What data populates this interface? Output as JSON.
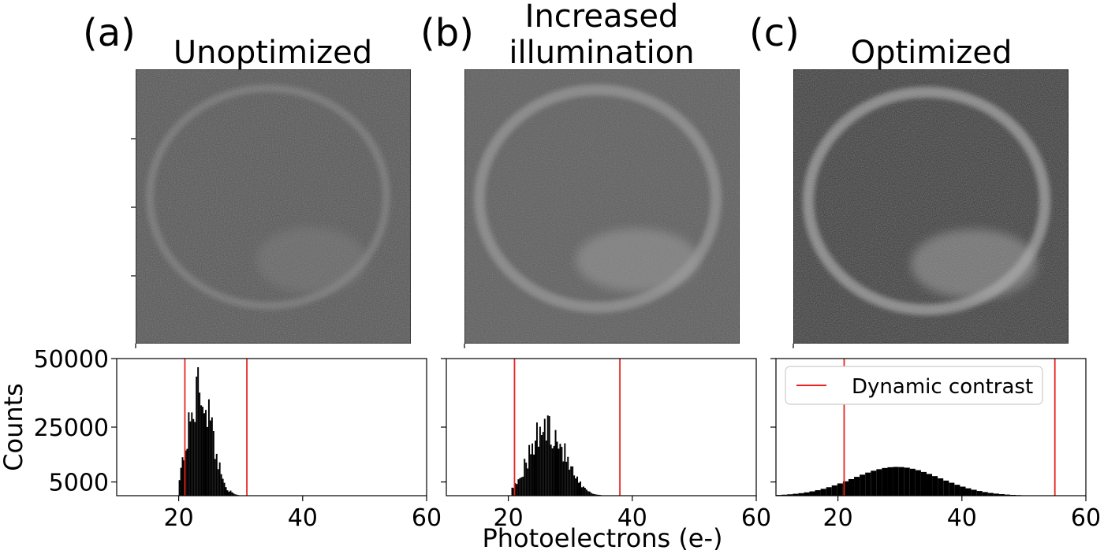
{
  "panels": [
    {
      "letter": "(a)",
      "title": "Unoptimized",
      "title_lines": [
        "Unoptimized"
      ]
    },
    {
      "letter": "(b)",
      "title": "Increased illumination",
      "title_lines": [
        "Increased",
        "illumination"
      ]
    },
    {
      "letter": "(c)",
      "title": "Optimized",
      "title_lines": [
        "Optimized"
      ]
    }
  ],
  "chart_data": [
    {
      "type": "bar",
      "title": "Unoptimized",
      "xlabel": "",
      "ylabel": "Counts",
      "xlim": [
        10,
        60
      ],
      "ylim": [
        0,
        50000
      ],
      "xticks": [
        20,
        40,
        60
      ],
      "yticks": [
        5000,
        25000,
        50000
      ],
      "bar_color": "#000000",
      "marker_color": "#e8231f",
      "histogram": {
        "mean": 23.5,
        "sd": 1.9,
        "peak": 50000,
        "min_x": 20,
        "max_x": 31,
        "bin_width": 0.25
      },
      "dynamic_contrast": [
        21,
        31
      ]
    },
    {
      "type": "bar",
      "title": "Increased illumination",
      "xlabel": "",
      "ylabel": "",
      "xlim": [
        10,
        60
      ],
      "ylim": [
        0,
        50000
      ],
      "xticks": [
        20,
        40,
        60
      ],
      "yticks": [],
      "bar_color": "#000000",
      "marker_color": "#e8231f",
      "histogram": {
        "mean": 26.3,
        "sd": 2.8,
        "peak": 32000,
        "min_x": 20.5,
        "max_x": 37,
        "bin_width": 0.25
      },
      "dynamic_contrast": [
        21,
        38
      ]
    },
    {
      "type": "bar",
      "title": "Optimized",
      "xlabel": "Photoelectrons (e-)",
      "ylabel": "",
      "xlim": [
        10,
        60
      ],
      "ylim": [
        0,
        50000
      ],
      "xticks": [
        20,
        40,
        60
      ],
      "yticks": [],
      "bar_color": "#000000",
      "marker_color": "#e8231f",
      "histogram": {
        "mean": 29.5,
        "sd": 7.0,
        "peak": 10500,
        "min_x": 10,
        "max_x": 57,
        "bin_width": 0.9
      },
      "dynamic_contrast": [
        21,
        55
      ],
      "legend": {
        "label": "Dynamic contrast",
        "position": "top-left"
      }
    }
  ],
  "images": [
    {
      "description_key": "unoptimized",
      "background_level": 0.32,
      "noise": 0.12,
      "ring_brightness": 0.18
    },
    {
      "description_key": "increased-illumination",
      "background_level": 0.36,
      "noise": 0.1,
      "ring_brightness": 0.3
    },
    {
      "description_key": "optimized",
      "background_level": 0.2,
      "noise": 0.2,
      "ring_brightness": 0.42
    }
  ]
}
